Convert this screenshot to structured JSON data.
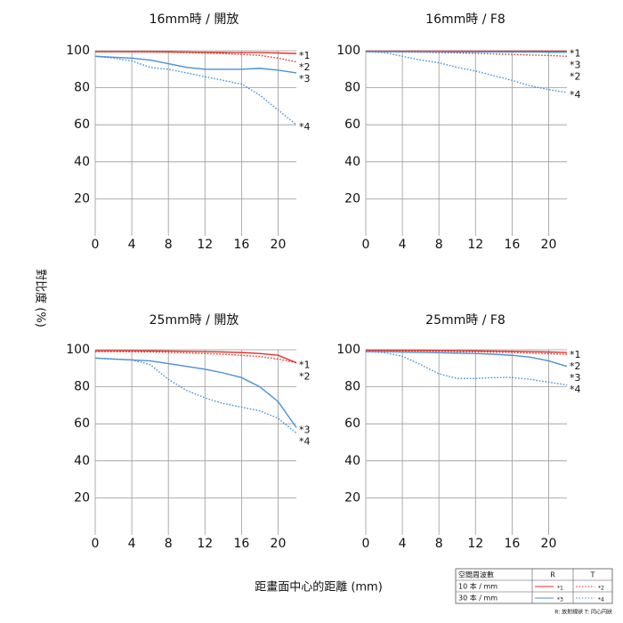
{
  "axis_labels": {
    "y": "對比度 (%)",
    "x": "距畫面中心的距離 (mm)"
  },
  "chart_data": [
    {
      "type": "line",
      "title": "16mm時 / 開放",
      "x": [
        0,
        2,
        4,
        6,
        8,
        10,
        12,
        14,
        16,
        18,
        20,
        22
      ],
      "xlim": [
        0,
        22
      ],
      "xticks": [
        0,
        4,
        8,
        12,
        16,
        20
      ],
      "ylim": [
        0,
        100
      ],
      "yticks": [
        20,
        40,
        60,
        80,
        100
      ],
      "grid": true,
      "series": [
        {
          "name": "*1",
          "color": "#e3322b",
          "style": "solid",
          "values": [
            99.5,
            99.5,
            99.5,
            99.5,
            99.4,
            99.3,
            99.2,
            99.1,
            99,
            99,
            98.8,
            98.5
          ]
        },
        {
          "name": "*2",
          "color": "#e3322b",
          "style": "dotted",
          "values": [
            99.5,
            99.5,
            99.4,
            99.3,
            99.2,
            99,
            98.8,
            98.5,
            98,
            97.5,
            96,
            94
          ]
        },
        {
          "name": "*3",
          "color": "#4a90d9",
          "style": "solid",
          "values": [
            97,
            96.5,
            96,
            95,
            93,
            91,
            90,
            90,
            90,
            90.5,
            89.5,
            88
          ]
        },
        {
          "name": "*4",
          "color": "#4a90d9",
          "style": "dotted",
          "values": [
            97,
            96,
            94.5,
            91,
            90,
            88,
            86,
            84,
            82,
            76,
            68,
            60
          ]
        }
      ]
    },
    {
      "type": "line",
      "title": "16mm時 / F8",
      "x": [
        0,
        2,
        4,
        6,
        8,
        10,
        12,
        14,
        16,
        18,
        20,
        22
      ],
      "xlim": [
        0,
        22
      ],
      "xticks": [
        0,
        4,
        8,
        12,
        16,
        20
      ],
      "ylim": [
        0,
        100
      ],
      "yticks": [
        20,
        40,
        60,
        80,
        100
      ],
      "grid": true,
      "series": [
        {
          "name": "*1",
          "color": "#e3322b",
          "style": "solid",
          "values": [
            99.8,
            99.8,
            99.8,
            99.8,
            99.8,
            99.8,
            99.8,
            99.8,
            99.8,
            99.8,
            99.8,
            99.7
          ]
        },
        {
          "name": "*2",
          "color": "#e3322b",
          "style": "dotted",
          "values": [
            99.5,
            99.4,
            99.3,
            99.2,
            99,
            98.8,
            98.6,
            98.3,
            98,
            97.7,
            97.4,
            97
          ]
        },
        {
          "name": "*3",
          "color": "#4a90d9",
          "style": "solid",
          "values": [
            99.5,
            99.5,
            99.5,
            99.5,
            99.5,
            99.4,
            99.4,
            99.4,
            99.3,
            99.3,
            99.2,
            99.2
          ]
        },
        {
          "name": "*4",
          "color": "#4a90d9",
          "style": "dotted",
          "values": [
            99.5,
            99,
            97,
            95,
            93.5,
            91,
            89,
            86.5,
            84,
            81,
            79,
            77.5
          ]
        }
      ]
    },
    {
      "type": "line",
      "title": "25mm時 / 開放",
      "x": [
        0,
        2,
        4,
        6,
        8,
        10,
        12,
        14,
        16,
        18,
        20,
        22
      ],
      "xlim": [
        0,
        22
      ],
      "xticks": [
        0,
        4,
        8,
        12,
        16,
        20
      ],
      "ylim": [
        0,
        100
      ],
      "yticks": [
        20,
        40,
        60,
        80,
        100
      ],
      "grid": true,
      "series": [
        {
          "name": "*1",
          "color": "#e3322b",
          "style": "solid",
          "values": [
            99.5,
            99.5,
            99.5,
            99.4,
            99.3,
            99.2,
            99,
            98.8,
            98.5,
            98,
            97,
            93
          ]
        },
        {
          "name": "*2",
          "color": "#e3322b",
          "style": "dotted",
          "values": [
            99,
            99,
            98.9,
            98.8,
            98.6,
            98.3,
            98,
            97.6,
            97,
            96.3,
            95,
            93
          ]
        },
        {
          "name": "*3",
          "color": "#4a90d9",
          "style": "solid",
          "values": [
            95.5,
            95,
            94.5,
            94,
            92.5,
            91,
            89.5,
            87.5,
            85,
            80,
            72,
            58
          ]
        },
        {
          "name": "*4",
          "color": "#4a90d9",
          "style": "dotted",
          "values": [
            95.5,
            95,
            94.5,
            92,
            84,
            78,
            74,
            71,
            69,
            67,
            63,
            55
          ]
        }
      ]
    },
    {
      "type": "line",
      "title": "25mm時 / F8",
      "x": [
        0,
        2,
        4,
        6,
        8,
        10,
        12,
        14,
        16,
        18,
        20,
        22
      ],
      "xlim": [
        0,
        22
      ],
      "xticks": [
        0,
        4,
        8,
        12,
        16,
        20
      ],
      "ylim": [
        0,
        100
      ],
      "yticks": [
        20,
        40,
        60,
        80,
        100
      ],
      "grid": true,
      "series": [
        {
          "name": "*1",
          "color": "#e3322b",
          "style": "solid",
          "values": [
            99.8,
            99.8,
            99.8,
            99.7,
            99.6,
            99.5,
            99.4,
            99.3,
            99.2,
            99,
            98.8,
            98.5
          ]
        },
        {
          "name": "*2",
          "color": "#e3322b",
          "style": "dotted",
          "values": [
            99.5,
            99.5,
            99.4,
            99.3,
            99.2,
            99,
            98.9,
            98.7,
            98.5,
            98.2,
            97.9,
            97.5
          ]
        },
        {
          "name": "*3",
          "color": "#4a90d9",
          "style": "solid",
          "values": [
            99,
            99,
            98.8,
            98.6,
            98.4,
            98.2,
            98,
            97.6,
            97,
            96,
            94,
            91
          ]
        },
        {
          "name": "*4",
          "color": "#4a90d9",
          "style": "dotted",
          "values": [
            99,
            98.5,
            96.5,
            92,
            87,
            84.5,
            84.5,
            85,
            85,
            84,
            82.5,
            81
          ]
        }
      ]
    }
  ],
  "legend_table": {
    "headers": [
      "空間周波數",
      "R",
      "T"
    ],
    "rows": [
      {
        "label": "10 本 / mm",
        "R": "*1",
        "T": "*2"
      },
      {
        "label": "30 本 / mm",
        "R": "*3",
        "T": "*4"
      }
    ],
    "note": "R: 放射線狀 T: 同心円狀"
  }
}
